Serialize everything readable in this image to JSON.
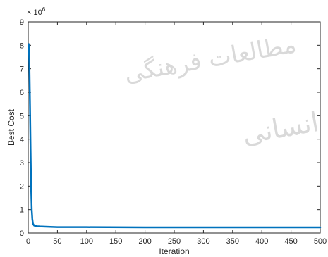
{
  "chart_data": {
    "type": "line",
    "title": "",
    "xlabel": "Iteration",
    "ylabel": "Best Cost",
    "y_exponent_label": "× 10^6",
    "xlim": [
      0,
      500
    ],
    "ylim": [
      0,
      9
    ],
    "y_multiplier": 1000000,
    "xticks": [
      "0",
      "50",
      "100",
      "150",
      "200",
      "250",
      "300",
      "350",
      "400",
      "450",
      "500"
    ],
    "yticks": [
      "0",
      "1",
      "2",
      "3",
      "4",
      "5",
      "6",
      "7",
      "8",
      "9"
    ],
    "grid": false,
    "series": [
      {
        "color": "#0072BD",
        "x": [
          1,
          2,
          3,
          4,
          5,
          6,
          7,
          8,
          10,
          12,
          15,
          20,
          30,
          50,
          100,
          200,
          300,
          400,
          500
        ],
        "y": [
          8.05,
          7.2,
          5.5,
          3.6,
          1.9,
          1.0,
          0.6,
          0.4,
          0.32,
          0.3,
          0.29,
          0.28,
          0.27,
          0.25,
          0.25,
          0.24,
          0.24,
          0.24,
          0.24
        ]
      }
    ]
  },
  "watermark": {
    "line1": "مطالعات فرهنگی",
    "line2": "انسانی"
  }
}
